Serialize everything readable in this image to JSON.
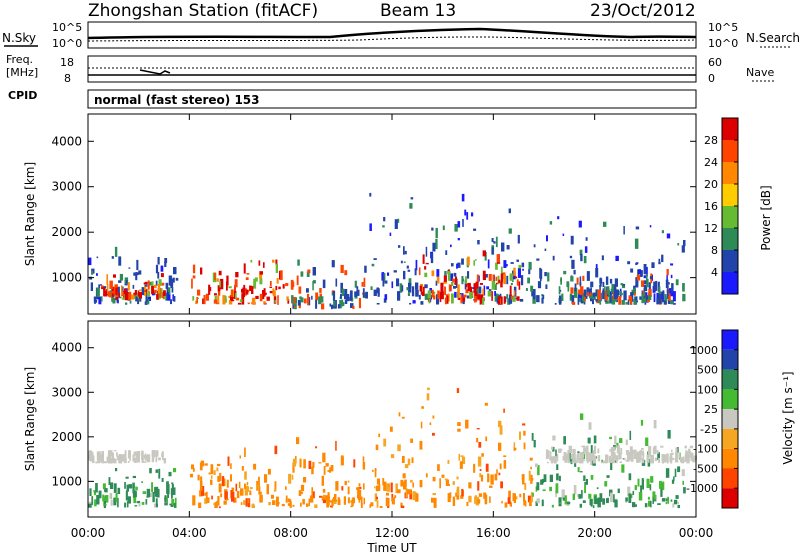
{
  "header": {
    "station": "Zhongshan Station (fitACF)",
    "beam": "Beam 13",
    "date": "23/Oct/2012"
  },
  "top_panels": {
    "nsky_label": "N.Sky",
    "nsky_ticks": [
      "10^5",
      "10^0"
    ],
    "nsearch_label": "N.Search",
    "nsearch_ticks": [
      "10^5",
      "10^0"
    ],
    "freq_label_line1": "Freq.",
    "freq_label_line2": "[MHz]",
    "freq_ticks": [
      "18",
      "8"
    ],
    "nave_label": "Nave",
    "nave_ticks": [
      "60",
      "0"
    ],
    "cpid_label": "CPID",
    "cpid_text": "normal (fast stereo) 153"
  },
  "colors": {
    "power": [
      "#1a1aff",
      "#2244aa",
      "#2e8b57",
      "#66bb33",
      "#ffcc00",
      "#ff8800",
      "#ff4400",
      "#dd0000"
    ],
    "velocity": [
      "#dd0000",
      "#ff4400",
      "#ff8800",
      "#f5a623",
      "#c8c8c0",
      "#44bb33",
      "#2e8b57",
      "#2244aa",
      "#1a1aff"
    ]
  },
  "chart_data": [
    {
      "type": "heatmap",
      "panel": "power",
      "ylabel": "Slant Range [km]",
      "xlabel": "",
      "x_ticks": [],
      "y_ticks": [
        "1000",
        "2000",
        "3000",
        "4000"
      ],
      "xlim": [
        0,
        24
      ],
      "ylim": [
        200,
        4600
      ],
      "colorbar_label": "Power [dB]",
      "colorbar_ticks": [
        "4",
        "8",
        "12",
        "16",
        "20",
        "24",
        "28"
      ],
      "grid": false,
      "bands": [
        {
          "t0": 0.0,
          "t1": 3.5,
          "r0": 400,
          "r1": 1700,
          "level": "low"
        },
        {
          "t0": 0.5,
          "t1": 3.0,
          "r0": 500,
          "r1": 1100,
          "level": "high"
        },
        {
          "t0": 4.0,
          "t1": 8.0,
          "r0": 400,
          "r1": 1400,
          "level": "high"
        },
        {
          "t0": 8.0,
          "t1": 11.0,
          "r0": 300,
          "r1": 1400,
          "level": "mid"
        },
        {
          "t0": 11.0,
          "t1": 17.0,
          "r0": 400,
          "r1": 3100,
          "level": "low"
        },
        {
          "t0": 13.0,
          "t1": 17.0,
          "r0": 400,
          "r1": 1600,
          "level": "high"
        },
        {
          "t0": 17.0,
          "t1": 23.5,
          "r0": 400,
          "r1": 2400,
          "level": "low"
        },
        {
          "t0": 19.0,
          "t1": 23.0,
          "r0": 400,
          "r1": 1200,
          "level": "mid"
        }
      ]
    },
    {
      "type": "heatmap",
      "panel": "velocity",
      "ylabel": "Slant Range [km]",
      "xlabel": "Time UT",
      "x_ticks": [
        "00:00",
        "04:00",
        "08:00",
        "12:00",
        "16:00",
        "20:00",
        "00:00"
      ],
      "y_ticks": [
        "1000",
        "2000",
        "3000",
        "4000"
      ],
      "xlim": [
        0,
        24
      ],
      "ylim": [
        200,
        4600
      ],
      "colorbar_label": "Velocity [m s⁻¹]",
      "colorbar_ticks": [
        "1000",
        "500",
        "100",
        "25",
        "-25",
        "-100",
        "-500",
        "-1000"
      ],
      "grid": false,
      "bands": [
        {
          "t0": 0.0,
          "t1": 3.5,
          "r0": 400,
          "r1": 1300,
          "level": "pos"
        },
        {
          "t0": 0.0,
          "t1": 3.0,
          "r0": 1400,
          "r1": 1700,
          "level": "zero"
        },
        {
          "t0": 4.0,
          "t1": 11.0,
          "r0": 400,
          "r1": 2000,
          "level": "neg"
        },
        {
          "t0": 11.0,
          "t1": 17.5,
          "r0": 400,
          "r1": 3200,
          "level": "neg"
        },
        {
          "t0": 17.5,
          "t1": 23.5,
          "r0": 400,
          "r1": 2600,
          "level": "pos"
        },
        {
          "t0": 18.0,
          "t1": 24.0,
          "r0": 1400,
          "r1": 1800,
          "level": "zero"
        }
      ]
    }
  ]
}
